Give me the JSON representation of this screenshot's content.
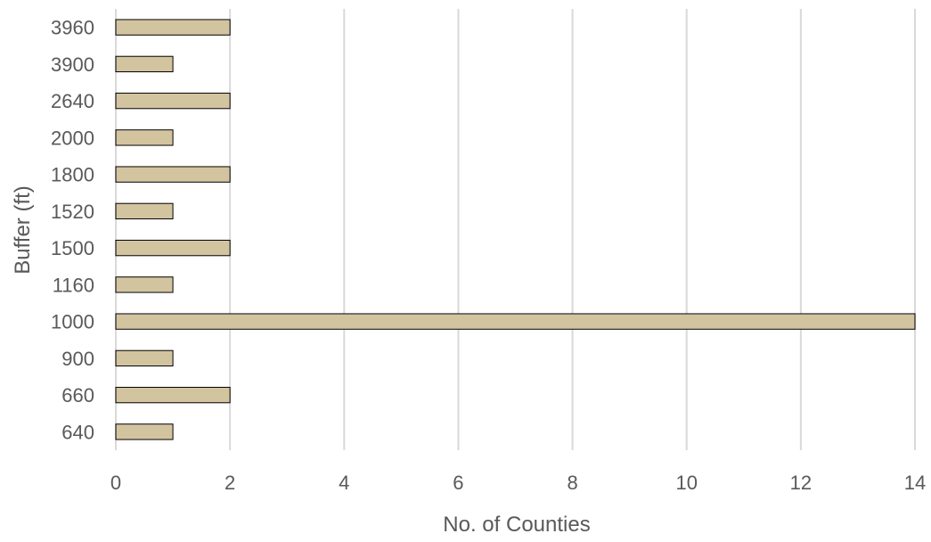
{
  "chart_data": {
    "type": "bar",
    "orientation": "horizontal",
    "title": "",
    "xlabel": "No. of Counties",
    "ylabel": "Buffer (ft)",
    "categories": [
      "640",
      "660",
      "900",
      "1000",
      "1160",
      "1500",
      "1520",
      "1800",
      "2000",
      "2640",
      "3900",
      "3960"
    ],
    "values": [
      1,
      2,
      1,
      14,
      1,
      2,
      1,
      2,
      1,
      2,
      1,
      2
    ],
    "xlim": [
      0,
      14
    ],
    "xticks": [
      "0",
      "2",
      "4",
      "6",
      "8",
      "10",
      "12",
      "14"
    ],
    "grid": "vertical",
    "legend": "none",
    "colors": {
      "bar_fill": "#d3c4a0",
      "bar_stroke": "#000000",
      "grid": "#d9d9d9",
      "text": "#595959"
    }
  }
}
